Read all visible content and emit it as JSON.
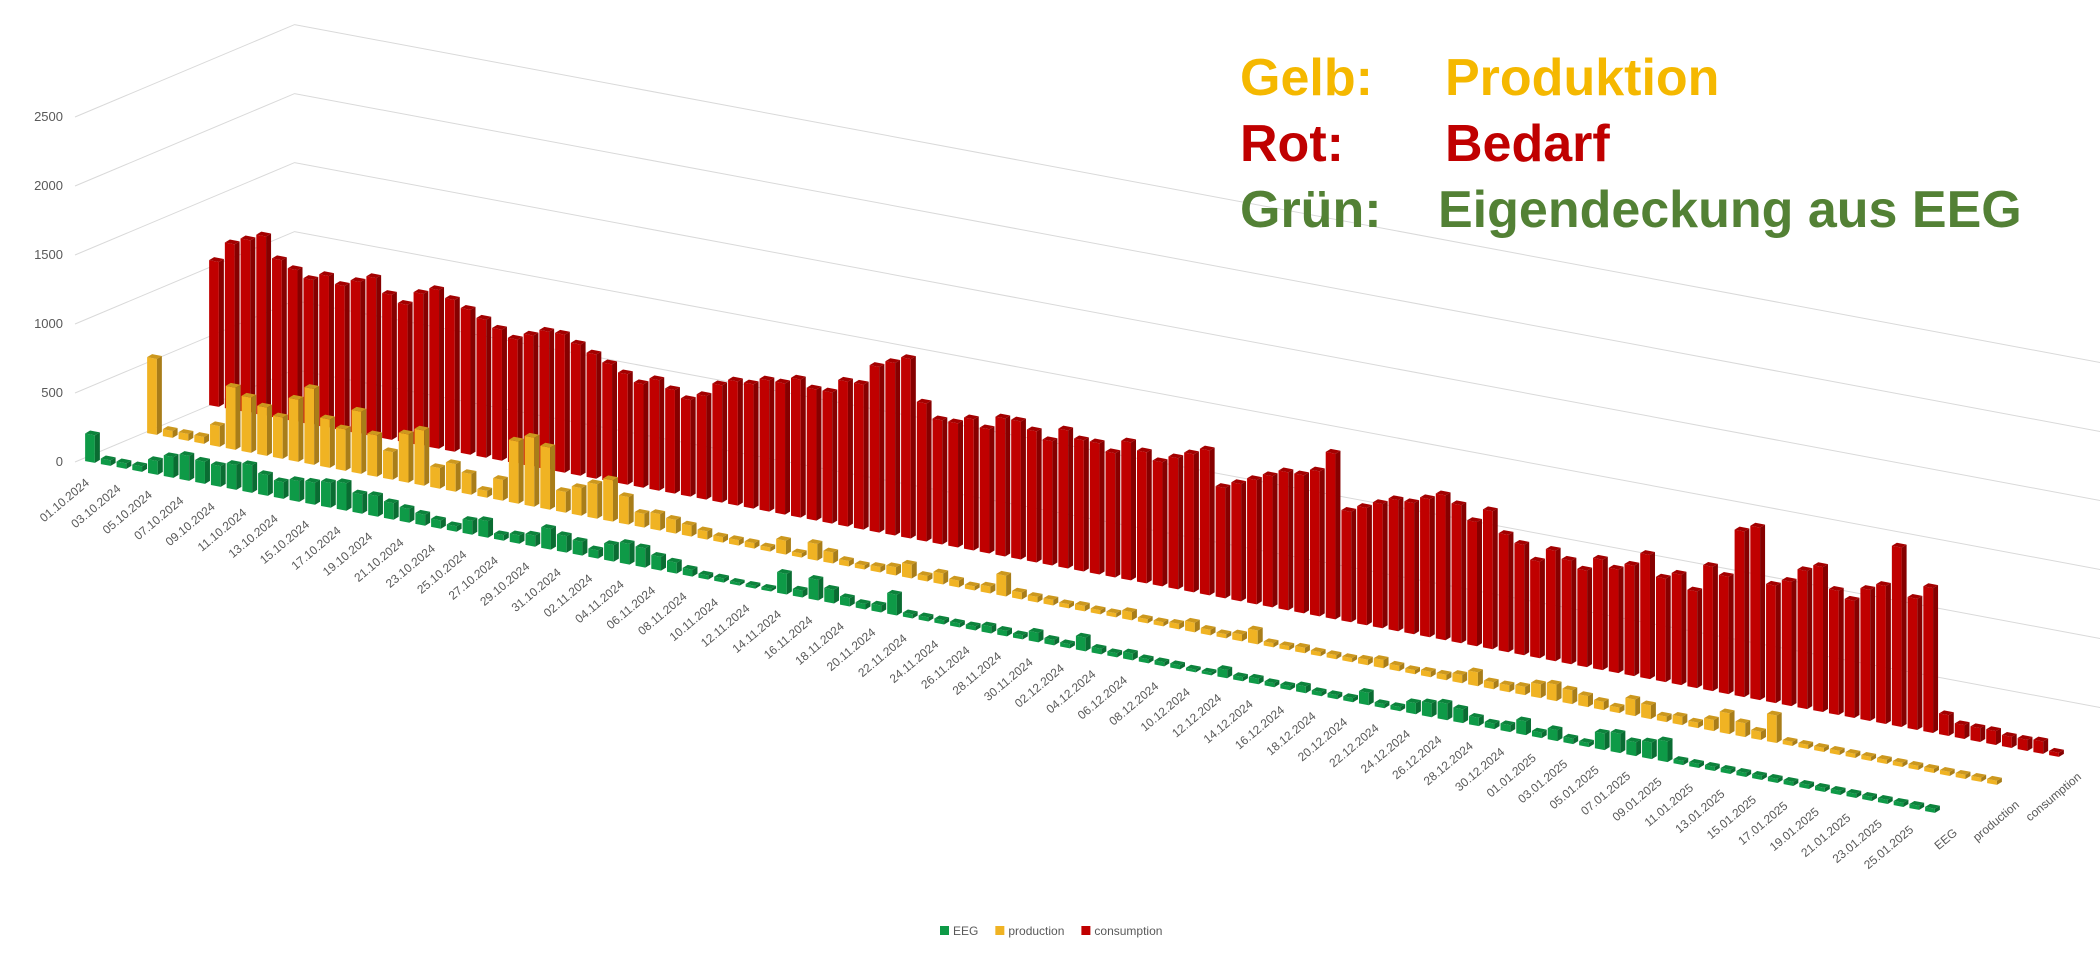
{
  "chart_data": {
    "type": "bar3d",
    "ylim": [
      0,
      2500
    ],
    "yticks": [
      0,
      500,
      1000,
      1500,
      2000,
      2500
    ],
    "grid": true,
    "legend": "bottom",
    "annotations": [
      {
        "label": "Gelb:",
        "text": "Produktion",
        "color": "#f5b800"
      },
      {
        "label": "Rot:",
        "text": "Bedarf",
        "color": "#c00000"
      },
      {
        "label": "Grün:",
        "text": "Eigendeckung aus EEG",
        "color": "#538135"
      }
    ],
    "categories": [
      "01.10.2024",
      null,
      "03.10.2024",
      null,
      "05.10.2024",
      null,
      "07.10.2024",
      null,
      "09.10.2024",
      null,
      "11.10.2024",
      null,
      "13.10.2024",
      null,
      "15.10.2024",
      null,
      "17.10.2024",
      null,
      "19.10.2024",
      null,
      "21.10.2024",
      null,
      "23.10.2024",
      null,
      "25.10.2024",
      null,
      "27.10.2024",
      null,
      "29.10.2024",
      null,
      "31.10.2024",
      null,
      "02.11.2024",
      null,
      "04.11.2024",
      null,
      "06.11.2024",
      null,
      "08.11.2024",
      null,
      "10.11.2024",
      null,
      "12.11.2024",
      null,
      "14.11.2024",
      null,
      "16.11.2024",
      null,
      "18.11.2024",
      null,
      "20.11.2024",
      null,
      "22.11.2024",
      null,
      "24.11.2024",
      null,
      "26.11.2024",
      null,
      "28.11.2024",
      null,
      "30.11.2024",
      null,
      "02.12.2024",
      null,
      "04.12.2024",
      null,
      "06.12.2024",
      null,
      "08.12.2024",
      null,
      "10.12.2024",
      null,
      "12.12.2024",
      null,
      "14.12.2024",
      null,
      "16.12.2024",
      null,
      "18.12.2024",
      null,
      "20.12.2024",
      null,
      "22.12.2024",
      null,
      "24.12.2024",
      null,
      "26.12.2024",
      null,
      "28.12.2024",
      null,
      "30.12.2024",
      null,
      "01.01.2025",
      null,
      "03.01.2025",
      null,
      "05.01.2025",
      null,
      "07.01.2025",
      null,
      "09.01.2025",
      null,
      "11.01.2025",
      null,
      "13.01.2025",
      null,
      "15.01.2025",
      null,
      "17.01.2025",
      null,
      "19.01.2025",
      null,
      "21.01.2025",
      null,
      "23.01.2025",
      null,
      "25.01.2025",
      null
    ],
    "series": [
      {
        "name": "EEG",
        "color": "#0e9a47",
        "values": [
          200,
          40,
          40,
          40,
          100,
          150,
          180,
          160,
          150,
          180,
          200,
          150,
          120,
          150,
          160,
          180,
          200,
          140,
          150,
          120,
          100,
          80,
          60,
          40,
          100,
          120,
          40,
          60,
          80,
          150,
          120,
          100,
          60,
          120,
          150,
          140,
          100,
          80,
          50,
          30,
          30,
          20,
          20,
          20,
          150,
          50,
          150,
          100,
          60,
          40,
          50,
          150,
          30,
          30,
          30,
          30,
          30,
          50,
          40,
          30,
          70,
          40,
          30,
          100,
          40,
          30,
          50,
          30,
          30,
          30,
          20,
          20,
          60,
          30,
          40,
          30,
          30,
          50,
          30,
          30,
          30,
          90,
          30,
          30,
          80,
          100,
          120,
          100,
          60,
          40,
          50,
          100,
          40,
          80,
          40,
          30,
          120,
          140,
          100,
          120,
          150,
          30,
          30,
          30,
          30,
          30,
          30,
          30,
          30,
          30,
          30,
          30,
          30,
          30,
          30,
          30,
          30,
          30
        ]
      },
      {
        "name": "production",
        "color": "#f0b323",
        "values": [
          550,
          50,
          50,
          50,
          150,
          450,
          400,
          350,
          300,
          450,
          550,
          350,
          300,
          450,
          300,
          200,
          350,
          400,
          150,
          200,
          150,
          50,
          150,
          450,
          500,
          450,
          150,
          200,
          250,
          300,
          200,
          100,
          120,
          100,
          80,
          60,
          40,
          40,
          40,
          30,
          100,
          30,
          120,
          80,
          40,
          30,
          40,
          60,
          100,
          40,
          80,
          50,
          30,
          50,
          150,
          50,
          40,
          40,
          30,
          40,
          30,
          30,
          60,
          30,
          30,
          40,
          70,
          40,
          30,
          50,
          100,
          30,
          30,
          40,
          30,
          30,
          30,
          40,
          60,
          40,
          30,
          40,
          40,
          60,
          100,
          50,
          50,
          60,
          100,
          120,
          100,
          80,
          60,
          40,
          120,
          100,
          40,
          60,
          40,
          80,
          150,
          100,
          60,
          200,
          30,
          30,
          30,
          30,
          30,
          30,
          30,
          30,
          30,
          30,
          30,
          30,
          30,
          30
        ]
      },
      {
        "name": "consumption",
        "color": "#c00000",
        "values": [
          1050,
          1200,
          1250,
          1300,
          1150,
          1100,
          1050,
          1100,
          1050,
          1100,
          1150,
          1050,
          1000,
          1100,
          1150,
          1100,
          1050,
          1000,
          950,
          900,
          950,
          1000,
          1000,
          950,
          900,
          850,
          800,
          750,
          800,
          750,
          700,
          750,
          850,
          900,
          900,
          950,
          950,
          1000,
          950,
          950,
          1050,
          1050,
          1200,
          1250,
          1300,
          1000,
          900,
          900,
          950,
          900,
          1000,
          1000,
          950,
          900,
          1000,
          950,
          950,
          900,
          1000,
          950,
          900,
          950,
          1000,
          1050,
          800,
          850,
          900,
          950,
          1000,
          1000,
          1050,
          1200,
          800,
          850,
          900,
          950,
          950,
          1000,
          1050,
          1000,
          900,
          1000,
          850,
          800,
          700,
          800,
          750,
          700,
          800,
          750,
          800,
          900,
          750,
          800,
          700,
          900,
          850,
          1200,
          1250,
          850,
          900,
          1000,
          1050,
          900,
          850,
          950,
          1000,
          1300,
          950,
          1050,
          150,
          100,
          100,
          100,
          80,
          80,
          90,
          30
        ]
      }
    ]
  }
}
